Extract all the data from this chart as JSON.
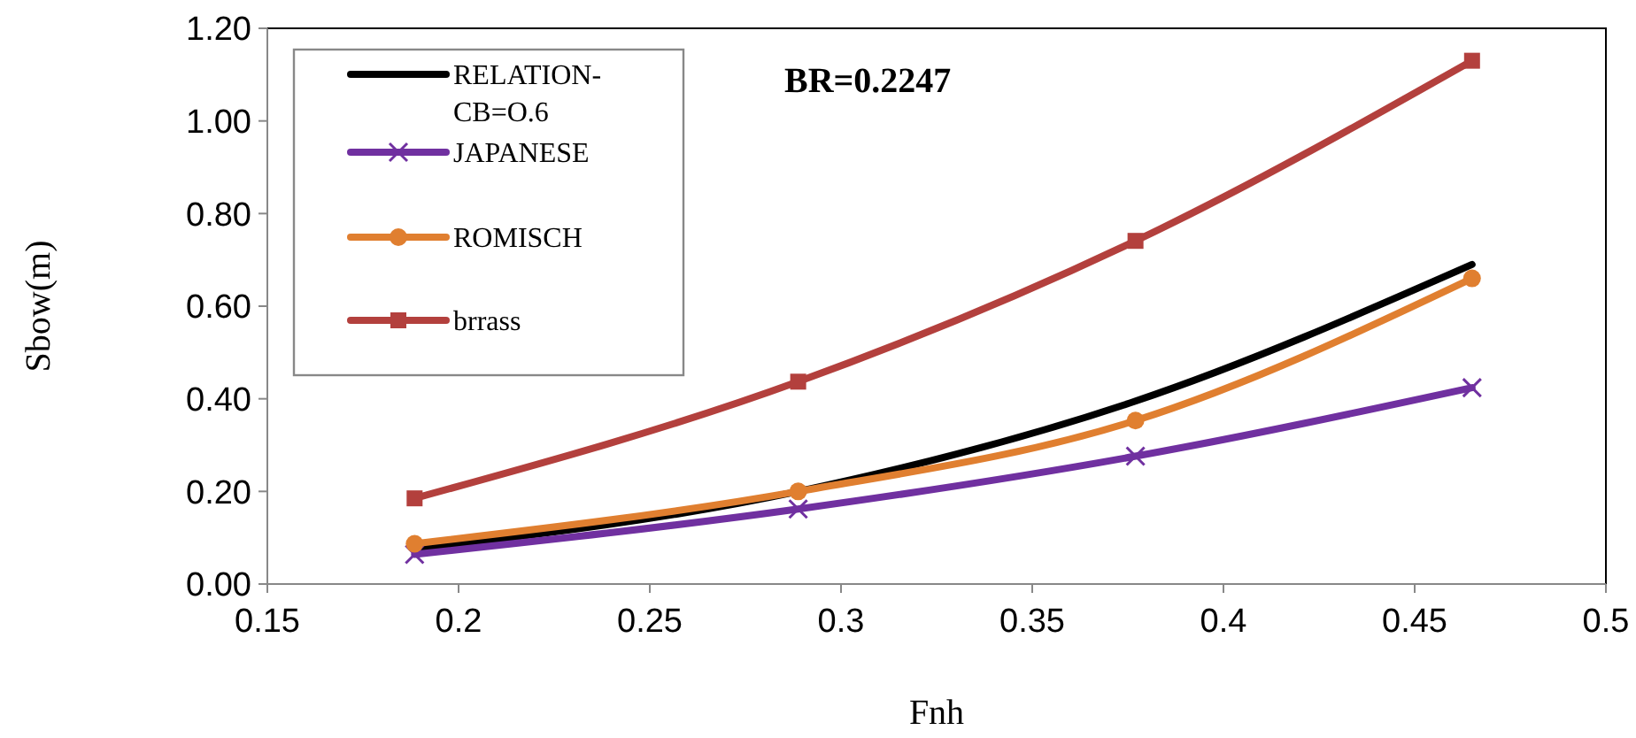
{
  "chart_data": {
    "type": "line",
    "xlabel": "Fnh",
    "ylabel": "Sbow(m)",
    "annotations": [
      "BR=0.2247"
    ],
    "x": [
      0.1885,
      0.2888,
      0.377,
      0.465
    ],
    "series": [
      {
        "name": "RELATION-CB=O.6",
        "color": "#000000",
        "marker": "none",
        "values": [
          0.075,
          0.2,
          0.395,
          0.69
        ]
      },
      {
        "name": "JAPANESE",
        "color": "#7030a0",
        "marker": "cross",
        "values": [
          0.064,
          0.162,
          0.276,
          0.424
        ]
      },
      {
        "name": "ROMISCH",
        "color": "#e07f30",
        "marker": "circle",
        "values": [
          0.087,
          0.2,
          0.353,
          0.66
        ]
      },
      {
        "name": "brrass",
        "color": "#b3403d",
        "marker": "square",
        "values": [
          0.185,
          0.437,
          0.741,
          1.13
        ]
      }
    ],
    "xlim": [
      0.15,
      0.5
    ],
    "xticks": [
      0.15,
      0.2,
      0.25,
      0.3,
      0.35,
      0.4,
      0.45,
      0.5
    ],
    "ylim": [
      0,
      1.2
    ],
    "yticks": [
      {
        "value": 0,
        "label": "0.00"
      },
      {
        "value": 0.2,
        "label": "0.20"
      },
      {
        "value": 0.4,
        "label": "0.40"
      },
      {
        "value": 0.6,
        "label": "0.60"
      },
      {
        "value": 0.8,
        "label": "0.80"
      },
      {
        "value": 1,
        "label": "1.00"
      },
      {
        "value": 1.2,
        "label": "1.20"
      }
    ],
    "grid": false,
    "legend": "top left",
    "line_style": "solid"
  }
}
